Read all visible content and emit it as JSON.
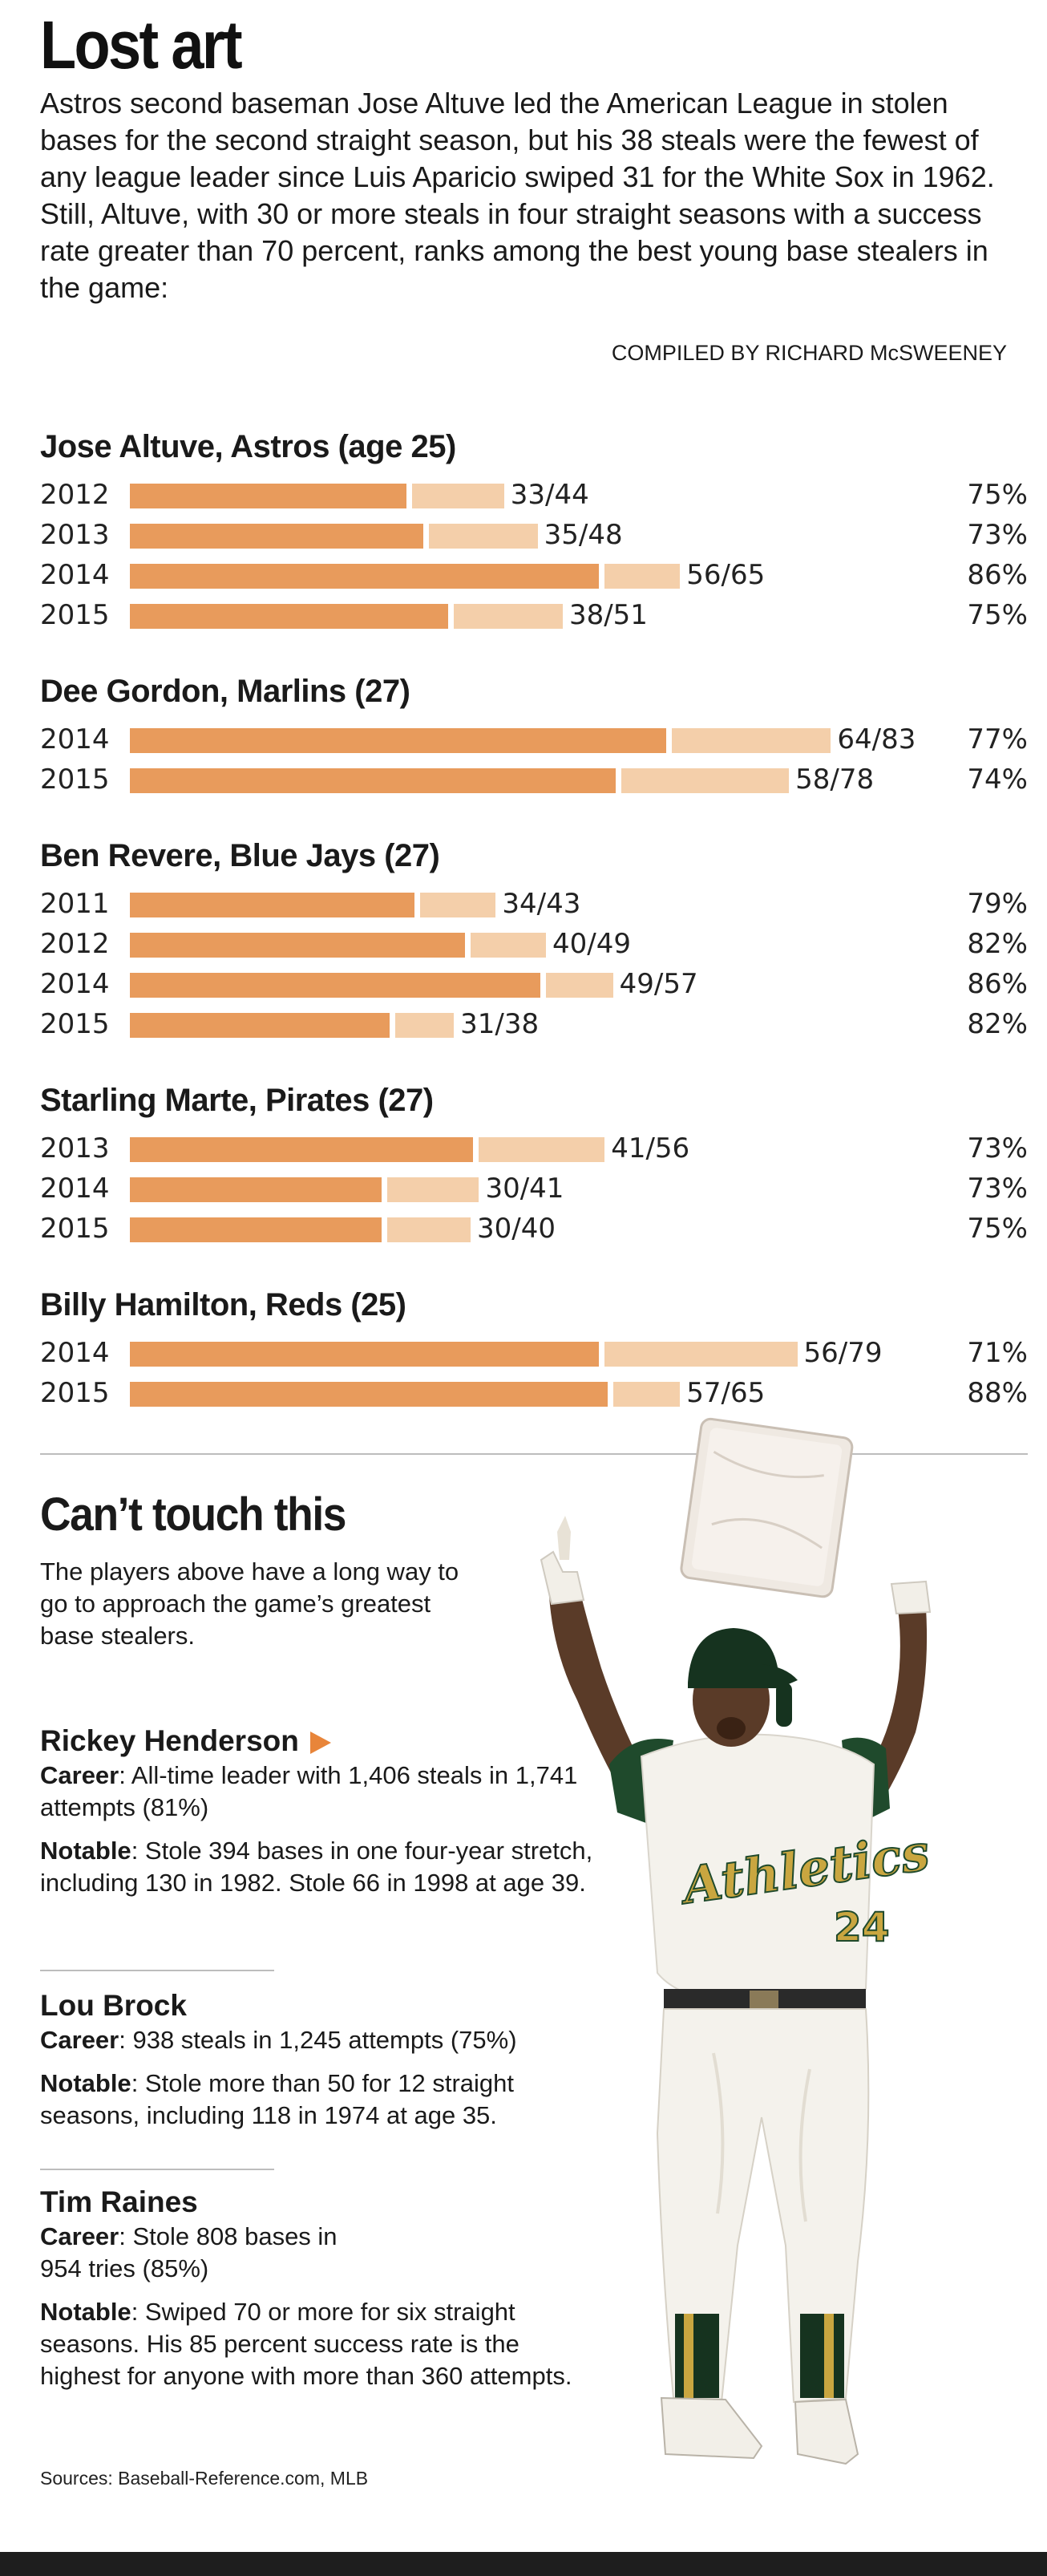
{
  "header": {
    "title": "Lost art",
    "intro": "Astros second baseman Jose Altuve led the American League in stolen bases for the second straight season, but his 38 steals were the fewest of any league leader since Luis Aparicio swiped 31 for the White Sox in 1962. Still, Altuve, with 30 or more steals in four straight seasons with a success rate greater than 70 percent, ranks among the best young base stealers in the game:",
    "credit": "COMPILED BY RICHARD McSWEENEY"
  },
  "chart_data": {
    "type": "bar",
    "orientation": "horizontal",
    "description_of_encoding": "dark segment = stolen bases, light segment = attempts",
    "xlim": [
      0,
      90
    ],
    "colors": {
      "steals": "#e89b5c",
      "attempts": "#f4cfaa"
    },
    "players": [
      {
        "name": "Jose Altuve, Astros (age 25)",
        "seasons": [
          {
            "year": "2012",
            "steals": 33,
            "attempts": 44,
            "ratio": "33/44",
            "pct": "75%"
          },
          {
            "year": "2013",
            "steals": 35,
            "attempts": 48,
            "ratio": "35/48",
            "pct": "73%"
          },
          {
            "year": "2014",
            "steals": 56,
            "attempts": 65,
            "ratio": "56/65",
            "pct": "86%"
          },
          {
            "year": "2015",
            "steals": 38,
            "attempts": 51,
            "ratio": "38/51",
            "pct": "75%"
          }
        ]
      },
      {
        "name": "Dee Gordon, Marlins (27)",
        "seasons": [
          {
            "year": "2014",
            "steals": 64,
            "attempts": 83,
            "ratio": "64/83",
            "pct": "77%"
          },
          {
            "year": "2015",
            "steals": 58,
            "attempts": 78,
            "ratio": "58/78",
            "pct": "74%"
          }
        ]
      },
      {
        "name": "Ben Revere, Blue Jays (27)",
        "seasons": [
          {
            "year": "2011",
            "steals": 34,
            "attempts": 43,
            "ratio": "34/43",
            "pct": "79%"
          },
          {
            "year": "2012",
            "steals": 40,
            "attempts": 49,
            "ratio": "40/49",
            "pct": "82%"
          },
          {
            "year": "2014",
            "steals": 49,
            "attempts": 57,
            "ratio": "49/57",
            "pct": "86%"
          },
          {
            "year": "2015",
            "steals": 31,
            "attempts": 38,
            "ratio": "31/38",
            "pct": "82%"
          }
        ]
      },
      {
        "name": "Starling Marte, Pirates (27)",
        "seasons": [
          {
            "year": "2013",
            "steals": 41,
            "attempts": 56,
            "ratio": "41/56",
            "pct": "73%"
          },
          {
            "year": "2014",
            "steals": 30,
            "attempts": 41,
            "ratio": "30/41",
            "pct": "73%"
          },
          {
            "year": "2015",
            "steals": 30,
            "attempts": 40,
            "ratio": "30/40",
            "pct": "75%"
          }
        ]
      },
      {
        "name": "Billy Hamilton, Reds (25)",
        "seasons": [
          {
            "year": "2014",
            "steals": 56,
            "attempts": 79,
            "ratio": "56/79",
            "pct": "71%"
          },
          {
            "year": "2015",
            "steals": 57,
            "attempts": 65,
            "ratio": "57/65",
            "pct": "88%"
          }
        ]
      }
    ]
  },
  "greats_section": {
    "title": "Can’t touch this",
    "intro": "The players above have a long way to go to approach the game’s greatest base stealers.",
    "career_label": "Career",
    "notable_label": "Notable",
    "accent_color": "#e8853a",
    "players": [
      {
        "name": "Rickey Henderson",
        "career": ": All-time leader with 1,406 steals in 1,741 attempts (81%)",
        "notable": ": Stole 394 bases in one four-year stretch, including 130 in 1982. Stole 66 in 1998 at age 39."
      },
      {
        "name": "Lou Brock",
        "career": ": 938 steals in 1,245 attempts (75%)",
        "notable": ": Stole more than 50 for 12 straight seasons, including 118 in 1974 at age 35."
      },
      {
        "name": "Tim Raines",
        "career": ": Stole 808 bases in 954 tries (85%)",
        "notable": ": Swiped 70 or more for six straight seasons. His 85 percent success rate is the highest for anyone with more than 360 attempts."
      }
    ]
  },
  "photo": {
    "jersey_text": "Athletics",
    "jersey_number": "24"
  },
  "sources": "Sources: Baseball-Reference.com, MLB"
}
